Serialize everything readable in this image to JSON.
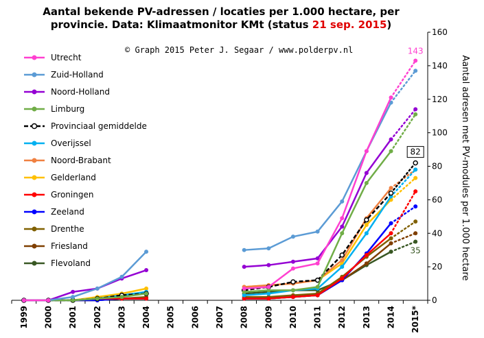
{
  "title": {
    "line1": "Aantal bekende PV-adressen / locaties per 1.000 hectare, per",
    "line2_prefix": "provincie.  Data: Klimaatmonitor KMt (status ",
    "line2_date": "21 sep. 2015",
    "line2_suffix": ")"
  },
  "copyright": "© Graph  2015  Peter J. Segaar / www.polderpv.nl",
  "colors": {
    "Utrecht": "#ff40d0",
    "Zuid-Holland": "#5b9bd5",
    "Noord-Holland": "#9400d3",
    "Limburg": "#70ad47",
    "Provinciaal gemiddelde": "#000000",
    "Overijssel": "#00b0f0",
    "Noord-Brabant": "#f08040",
    "Gelderland": "#ffc000",
    "Groningen": "#ff0000",
    "Zeeland": "#0000ff",
    "Drenthe": "#806000",
    "Friesland": "#7f3f00",
    "Flevoland": "#385723"
  },
  "chart_data": {
    "type": "line",
    "x": [
      "1999",
      "2000",
      "2001",
      "2002",
      "2003",
      "2004",
      "2005",
      "2006",
      "2007",
      "2008",
      "2009",
      "2010",
      "2011",
      "2012",
      "2013",
      "2014",
      "2015*"
    ],
    "ylabel": "Aantal adresen met PV-modules  per 1.000  hectare",
    "ylim": [
      0,
      160
    ],
    "yticks": [
      0,
      20,
      40,
      60,
      80,
      100,
      120,
      140,
      160
    ],
    "grid": false,
    "legend_position": "top-left",
    "projection_style": "dotted segment 2014 to 2015*",
    "series": [
      {
        "name": "Utrecht",
        "values": [
          0,
          0,
          null,
          null,
          null,
          null,
          null,
          null,
          null,
          7,
          8,
          19,
          22,
          49,
          89,
          121,
          143
        ]
      },
      {
        "name": "Zuid-Holland",
        "values": [
          0,
          0,
          2,
          7,
          14,
          29,
          null,
          null,
          null,
          30,
          31,
          38,
          41,
          59,
          89,
          118,
          137
        ]
      },
      {
        "name": "Noord-Holland",
        "values": [
          0,
          0,
          5,
          7,
          13,
          18,
          null,
          null,
          null,
          20,
          21,
          23,
          25,
          44,
          76,
          96,
          114
        ]
      },
      {
        "name": "Limburg",
        "values": [
          0,
          0,
          0,
          1,
          2,
          4,
          null,
          null,
          null,
          5,
          6,
          6,
          8,
          40,
          70,
          89,
          111
        ]
      },
      {
        "name": "Provinciaal gemiddelde",
        "values": [
          0,
          0,
          0,
          1,
          3,
          4,
          null,
          null,
          null,
          6,
          8,
          11,
          12,
          27,
          48,
          64,
          82
        ]
      },
      {
        "name": "Overijssel",
        "values": [
          0,
          0,
          0,
          1,
          3,
          5,
          null,
          null,
          null,
          3,
          4,
          6,
          7,
          20,
          40,
          62,
          78
        ]
      },
      {
        "name": "Noord-Brabant",
        "values": [
          0,
          0,
          0,
          1,
          3,
          5,
          null,
          null,
          null,
          8,
          9,
          10,
          12,
          24,
          49,
          67,
          78
        ]
      },
      {
        "name": "Gelderland",
        "values": [
          0,
          0,
          0,
          2,
          4,
          7,
          null,
          null,
          null,
          8,
          9,
          10,
          12,
          22,
          45,
          60,
          73
        ]
      },
      {
        "name": "Groningen",
        "values": [
          0,
          0,
          0,
          1,
          1,
          1,
          null,
          null,
          null,
          1,
          1,
          2,
          3,
          13,
          27,
          40,
          65
        ]
      },
      {
        "name": "Zeeland",
        "values": [
          0,
          0,
          0,
          0,
          1,
          1,
          null,
          null,
          null,
          1,
          1,
          2,
          3,
          12,
          28,
          46,
          56
        ]
      },
      {
        "name": "Drenthe",
        "values": [
          0,
          0,
          0,
          1,
          1,
          2,
          null,
          null,
          null,
          2,
          2,
          3,
          4,
          14,
          26,
          37,
          47
        ]
      },
      {
        "name": "Friesland",
        "values": [
          0,
          0,
          0,
          0,
          1,
          1,
          null,
          null,
          null,
          1,
          1,
          2,
          3,
          12,
          22,
          34,
          40
        ]
      },
      {
        "name": "Flevoland",
        "values": [
          0,
          0,
          0,
          0,
          1,
          1,
          null,
          null,
          null,
          4,
          5,
          6,
          6,
          12,
          21,
          29,
          35
        ]
      }
    ],
    "annotations": [
      {
        "text": "143",
        "series": "Utrecht",
        "boxed": false
      },
      {
        "text": "82",
        "series": "Provinciaal gemiddelde",
        "boxed": true
      },
      {
        "text": "35",
        "series": "Flevoland",
        "boxed": false
      }
    ]
  }
}
